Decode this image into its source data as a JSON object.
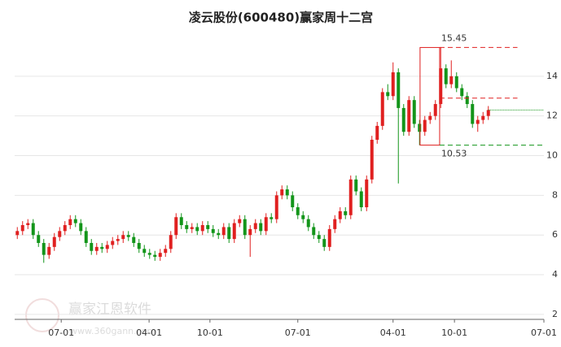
{
  "chart_data": {
    "type": "candlestick",
    "title": "凌云股份(600480)赢家周十二宫",
    "watermark": "赢家江恩软件",
    "watermark_url": "www.360gann.com",
    "up_color": "#e02020",
    "down_color": "#13951a",
    "ylim": [
      1.75,
      16.0
    ],
    "yticks": [
      2,
      4,
      6,
      8,
      10,
      12,
      14
    ],
    "grid": true,
    "xlim": [
      0,
      100
    ],
    "xticks": [
      {
        "value": 8.8,
        "label": "07-01"
      },
      {
        "value": 25.4,
        "label": "04-01"
      },
      {
        "value": 36.9,
        "label": "10-01"
      },
      {
        "value": 53.5,
        "label": "07-01"
      },
      {
        "value": 71.5,
        "label": "04-01"
      },
      {
        "value": 83.1,
        "label": "10-01"
      },
      {
        "value": 100,
        "label": "07-01"
      }
    ],
    "box_high": 15.45,
    "box_low": 10.53,
    "resistance": 12.9,
    "support": 12.3,
    "open": [
      6.0,
      6.2,
      6.5,
      6.6,
      6.0,
      5.6,
      5.0,
      5.4,
      5.9,
      6.2,
      6.5,
      6.8,
      6.6,
      6.2,
      5.6,
      5.2,
      5.4,
      5.3,
      5.5,
      5.7,
      5.8,
      6.0,
      5.9,
      5.6,
      5.3,
      5.1,
      5.0,
      4.9,
      5.1,
      5.3,
      6.0,
      6.9,
      6.5,
      6.3,
      6.4,
      6.2,
      6.5,
      6.3,
      6.1,
      6.0,
      6.4,
      5.8,
      6.6,
      6.8,
      6.0,
      6.3,
      6.6,
      6.2,
      6.9,
      6.8,
      8.0,
      8.3,
      8.0,
      7.4,
      7.0,
      6.8,
      6.4,
      6.0,
      5.8,
      5.4,
      6.3,
      6.8,
      7.2,
      7.0,
      8.8,
      8.2,
      7.4,
      8.8,
      10.8,
      11.5,
      13.2,
      13.0,
      14.2,
      12.4,
      11.2,
      12.8,
      11.6,
      11.2,
      11.8,
      12.0,
      12.6,
      14.4,
      13.6,
      14.0,
      13.4,
      13.0,
      12.6,
      11.6,
      11.8,
      12.0
    ],
    "high": [
      6.4,
      6.7,
      6.8,
      6.8,
      6.2,
      5.8,
      5.6,
      6.1,
      6.4,
      6.7,
      7.0,
      7.0,
      6.8,
      6.4,
      5.8,
      5.6,
      5.6,
      5.7,
      5.9,
      6.0,
      6.2,
      6.2,
      6.1,
      5.8,
      5.5,
      5.3,
      5.2,
      5.3,
      5.5,
      6.2,
      7.1,
      7.1,
      6.7,
      6.6,
      6.6,
      6.7,
      6.7,
      6.5,
      6.3,
      6.6,
      6.6,
      6.8,
      7.0,
      7.0,
      6.5,
      6.8,
      6.8,
      7.1,
      7.1,
      8.2,
      8.5,
      8.5,
      8.2,
      7.6,
      7.2,
      7.0,
      6.6,
      6.2,
      6.0,
      6.5,
      7.0,
      7.4,
      7.4,
      9.0,
      9.0,
      8.4,
      9.0,
      11.0,
      11.7,
      13.4,
      13.6,
      14.7,
      14.4,
      12.6,
      13.0,
      13.0,
      11.8,
      12.0,
      12.2,
      12.8,
      15.45,
      14.6,
      14.8,
      14.2,
      13.6,
      13.2,
      12.8,
      12.0,
      12.2,
      12.5
    ],
    "low": [
      5.8,
      6.0,
      6.3,
      5.8,
      5.4,
      4.6,
      4.8,
      5.2,
      5.7,
      6.0,
      6.3,
      6.4,
      6.0,
      5.4,
      5.0,
      5.0,
      5.1,
      5.1,
      5.3,
      5.5,
      5.6,
      5.7,
      5.4,
      5.1,
      4.9,
      4.8,
      4.7,
      4.7,
      4.9,
      5.1,
      5.8,
      6.3,
      6.1,
      6.1,
      6.0,
      6.0,
      6.1,
      5.9,
      5.8,
      5.8,
      5.6,
      5.6,
      6.4,
      5.8,
      4.9,
      6.1,
      6.0,
      6.0,
      6.6,
      6.6,
      7.8,
      7.8,
      7.2,
      6.8,
      6.6,
      6.2,
      5.8,
      5.6,
      5.2,
      5.2,
      6.1,
      6.6,
      6.8,
      6.8,
      8.0,
      7.2,
      7.2,
      8.6,
      10.6,
      11.3,
      12.8,
      12.8,
      8.6,
      11.0,
      11.0,
      11.4,
      10.53,
      11.0,
      11.6,
      11.8,
      12.4,
      13.4,
      13.4,
      13.2,
      12.8,
      12.4,
      11.4,
      11.2,
      11.6,
      11.8
    ],
    "close": [
      6.2,
      6.5,
      6.6,
      6.0,
      5.6,
      5.0,
      5.4,
      5.9,
      6.2,
      6.5,
      6.8,
      6.6,
      6.2,
      5.6,
      5.2,
      5.4,
      5.3,
      5.5,
      5.7,
      5.8,
      6.0,
      5.9,
      5.6,
      5.3,
      5.1,
      5.0,
      4.9,
      5.1,
      5.3,
      6.0,
      6.9,
      6.5,
      6.3,
      6.4,
      6.2,
      6.5,
      6.3,
      6.1,
      6.0,
      6.4,
      5.8,
      6.6,
      6.8,
      6.0,
      6.3,
      6.6,
      6.2,
      6.9,
      6.8,
      8.0,
      8.3,
      8.0,
      7.4,
      7.0,
      6.8,
      6.4,
      6.0,
      5.8,
      5.4,
      6.3,
      6.8,
      7.2,
      7.0,
      8.8,
      8.2,
      7.4,
      8.8,
      10.8,
      11.5,
      13.2,
      13.0,
      14.2,
      12.4,
      11.2,
      12.8,
      11.6,
      11.2,
      11.8,
      12.0,
      12.6,
      14.4,
      13.6,
      14.0,
      13.4,
      13.0,
      12.6,
      11.6,
      11.8,
      12.0,
      12.3
    ]
  }
}
